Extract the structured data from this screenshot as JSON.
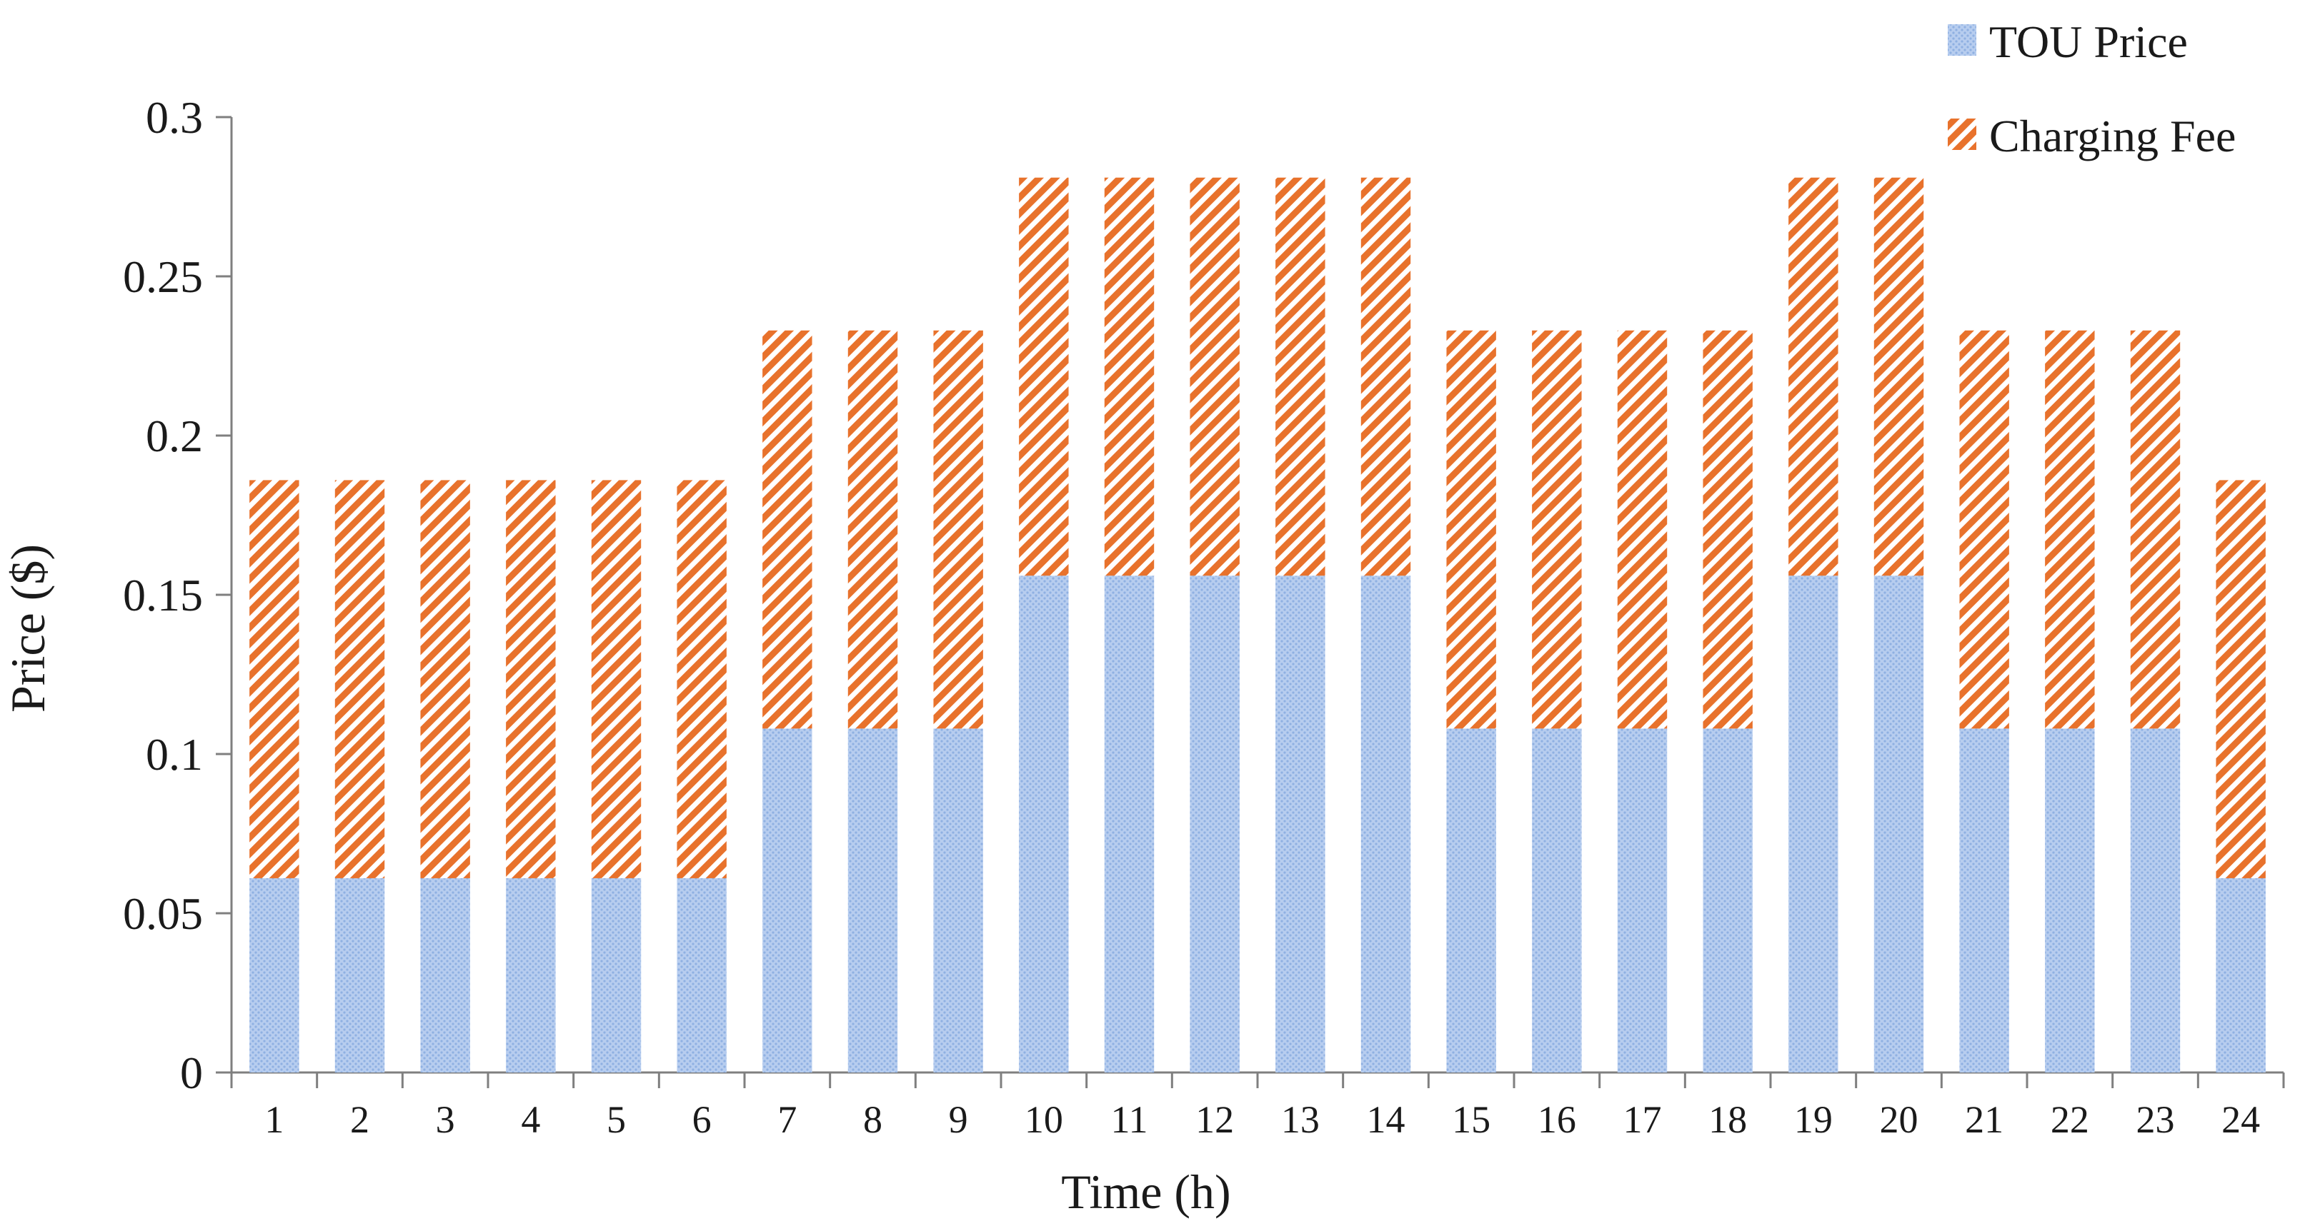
{
  "chart_data": {
    "type": "bar",
    "stacked": true,
    "title": "",
    "xlabel": "Time (h)",
    "ylabel": "Price ($)",
    "ylim": [
      0,
      0.3
    ],
    "yticks": [
      "0",
      "0.05",
      "0.1",
      "0.15",
      "0.2",
      "0.25",
      "0.3"
    ],
    "categories": [
      "1",
      "2",
      "3",
      "4",
      "5",
      "6",
      "7",
      "8",
      "9",
      "10",
      "11",
      "12",
      "13",
      "14",
      "15",
      "16",
      "17",
      "18",
      "19",
      "20",
      "21",
      "22",
      "23",
      "24"
    ],
    "series": [
      {
        "name": "TOU Price",
        "color": "#a9c4ea",
        "pattern": "fine-dots",
        "values": [
          0.061,
          0.061,
          0.061,
          0.061,
          0.061,
          0.061,
          0.108,
          0.108,
          0.108,
          0.156,
          0.156,
          0.156,
          0.156,
          0.156,
          0.108,
          0.108,
          0.108,
          0.108,
          0.156,
          0.156,
          0.108,
          0.108,
          0.108,
          0.061
        ]
      },
      {
        "name": "Charging Fee",
        "color": "#e8722c",
        "pattern": "diagonal-hatch",
        "values": [
          0.125,
          0.125,
          0.125,
          0.125,
          0.125,
          0.125,
          0.125,
          0.125,
          0.125,
          0.125,
          0.125,
          0.125,
          0.125,
          0.125,
          0.125,
          0.125,
          0.125,
          0.125,
          0.125,
          0.125,
          0.125,
          0.125,
          0.125,
          0.125
        ]
      }
    ],
    "grid": false,
    "legend_position": "top-right"
  }
}
